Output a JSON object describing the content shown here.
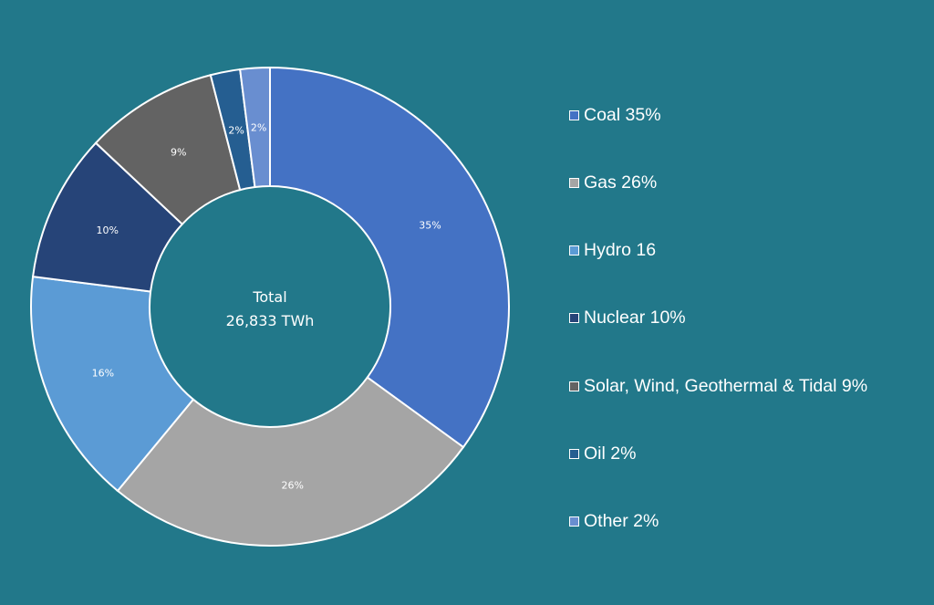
{
  "chart_data": {
    "type": "pie",
    "center_label": [
      "Total",
      "26,833 TWh"
    ],
    "slices": [
      {
        "name": "Coal",
        "value": 35,
        "data_label": "35%",
        "legend_label": "Coal 35%",
        "color": "#4472C4"
      },
      {
        "name": "Gas",
        "value": 26,
        "data_label": "26%",
        "legend_label": "Gas 26%",
        "color": "#A5A5A5"
      },
      {
        "name": "Hydro",
        "value": 16,
        "data_label": "16%",
        "legend_label": "Hydro 16",
        "color": "#5B9BD5"
      },
      {
        "name": "Nuclear",
        "value": 10,
        "data_label": "10%",
        "legend_label": "Nuclear 10%",
        "color": "#264478"
      },
      {
        "name": "Solar, Wind, Geothermal & Tidal",
        "value": 9,
        "data_label": "9%",
        "legend_label": "Solar, Wind, Geothermal & Tidal 9%",
        "color": "#636363"
      },
      {
        "name": "Oil",
        "value": 2,
        "data_label": "2%",
        "legend_label": "Oil 2%",
        "color": "#255E91"
      },
      {
        "name": "Other",
        "value": 2,
        "data_label": "2%",
        "legend_label": "Other 2%",
        "color": "#698ED0"
      }
    ],
    "legend_position": "right",
    "donut": true
  },
  "colors": {
    "background": "#22788A",
    "slice_border": "#FFFFFF",
    "text": "#FFFFFF"
  }
}
